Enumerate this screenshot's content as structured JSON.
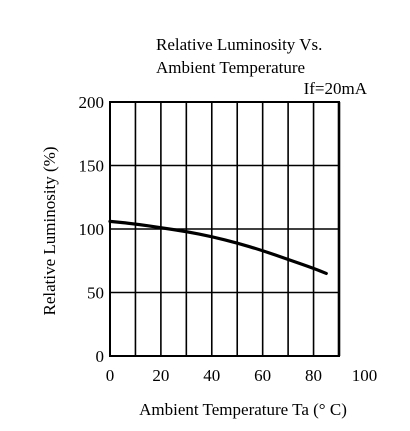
{
  "chart_data": {
    "type": "line",
    "title_line1": "Relative Luminosity Vs.",
    "title_line2": "Ambient Temperature",
    "annotation": "If=20mA",
    "xlabel": "Ambient  Temperature  Ta  (° C)",
    "ylabel": "Relative  Luminosity (%)",
    "xlim": [
      0,
      100
    ],
    "ylim": [
      0,
      200
    ],
    "x_ticks": [
      "0",
      "20",
      "40",
      "60",
      "80",
      "100"
    ],
    "y_ticks": [
      "200",
      "150",
      "100",
      "50",
      "0"
    ],
    "grid": true,
    "series": [
      {
        "x": [
          0,
          10,
          20,
          30,
          40,
          50,
          60,
          70,
          80,
          85
        ],
        "y": [
          106,
          104,
          101,
          98,
          94,
          89,
          83,
          76,
          69,
          65
        ]
      }
    ],
    "colors": {
      "line": "#000000",
      "grid": "#000000",
      "background": "#ffffff"
    }
  }
}
